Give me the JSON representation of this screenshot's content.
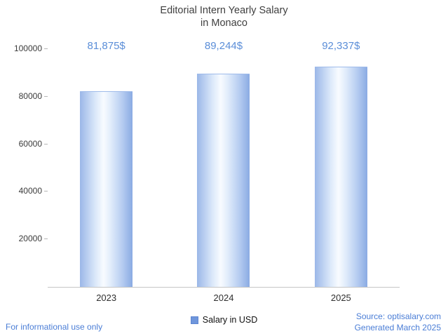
{
  "title": {
    "line1": "Editorial Intern Yearly Salary",
    "line2": "in Monaco"
  },
  "chart_data": {
    "type": "bar",
    "title": "Editorial Intern Yearly Salary in Monaco",
    "categories": [
      "2023",
      "2024",
      "2025"
    ],
    "values": [
      81875,
      89244,
      92337
    ],
    "value_labels": [
      "81,875$",
      "89,244$",
      "92,337$"
    ],
    "series": [
      {
        "name": "Salary in USD",
        "values": [
          81875,
          89244,
          92337
        ]
      }
    ],
    "xlabel": "",
    "ylabel": "",
    "ylim": [
      0,
      100000
    ],
    "yticks": [
      20000,
      40000,
      60000,
      80000,
      100000
    ],
    "ytick_labels": [
      "20000",
      "40000",
      "60000",
      "80000",
      "100000"
    ],
    "grid": false,
    "legend_position": "bottom"
  },
  "legend": {
    "label": "Salary in USD"
  },
  "footer": {
    "left": "For informational use only",
    "source": "Source: optisalary.com",
    "generated": "Generated March 2025"
  },
  "colors": {
    "value_label_text": "#5b8ed8",
    "footer_text": "#4a7dd6",
    "bar_edge": "#8aabe3",
    "bar_center": "#f8fbff",
    "legend_swatch": "#6f96dc",
    "axis_line": "#c6c6c6"
  }
}
